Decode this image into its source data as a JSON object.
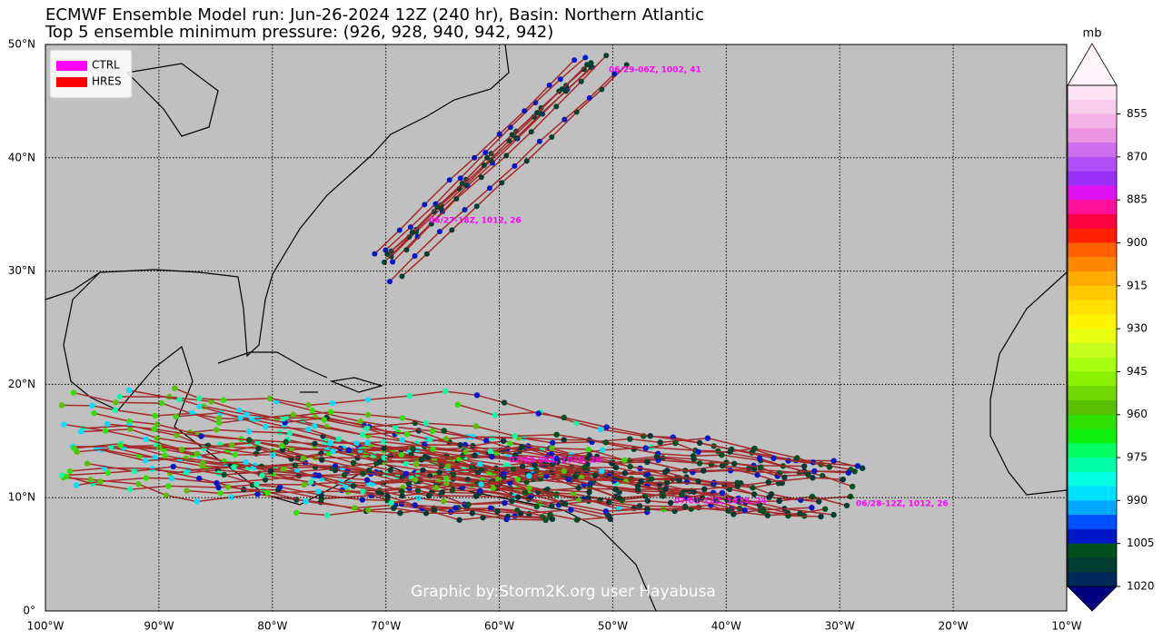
{
  "header": {
    "title": "ECMWF Ensemble Model run: Jun-26-2024 12Z (240 hr), Basin: Northern Atlantic",
    "subtitle": "Top 5 ensemble minimum pressure: (926, 928, 940, 942, 942)"
  },
  "map": {
    "lon_ticks": [
      {
        "value": -100,
        "label": "100°W"
      },
      {
        "value": -90,
        "label": "90°W"
      },
      {
        "value": -80,
        "label": "80°W"
      },
      {
        "value": -70,
        "label": "70°W"
      },
      {
        "value": -60,
        "label": "60°W"
      },
      {
        "value": -50,
        "label": "50°W"
      },
      {
        "value": -40,
        "label": "40°W"
      },
      {
        "value": -30,
        "label": "30°W"
      },
      {
        "value": -20,
        "label": "20°W"
      },
      {
        "value": -10,
        "label": "10°W"
      }
    ],
    "lat_ticks": [
      {
        "value": 0,
        "label": "0°"
      },
      {
        "value": 10,
        "label": "10°N"
      },
      {
        "value": 20,
        "label": "20°N"
      },
      {
        "value": 30,
        "label": "30°N"
      },
      {
        "value": 40,
        "label": "40°N"
      },
      {
        "value": 50,
        "label": "50°N"
      }
    ],
    "lonlim": [
      -100,
      -10
    ],
    "latlim": [
      0,
      50
    ],
    "grid": true,
    "legend": [
      {
        "label": "CTRL",
        "color": "#ff00ff"
      },
      {
        "label": "HRES",
        "color": "#ff0000"
      }
    ],
    "annotations": [
      "06/29-06Z, 1002, 41",
      "06/27-18Z, 1012, 26",
      "07/02-06Z, 1010, 26",
      "07/01-12Z, 1013, 24",
      "06/28-12Z, 1012, 26"
    ],
    "credit": "Graphic by:Storm2K.org user Hayabusa"
  },
  "colorbar": {
    "unit": "mb",
    "lim": [
      845,
      1020
    ],
    "ticks": [
      855,
      870,
      885,
      900,
      915,
      930,
      945,
      960,
      975,
      990,
      1005,
      1020
    ],
    "under_color": "#fff5fb",
    "over_color": "#00007f",
    "colors": [
      "#fce4f2",
      "#f8cdec",
      "#f3b2e8",
      "#eb94e2",
      "#cf6ff0",
      "#b24ff8",
      "#9a30f8",
      "#e010f0",
      "#ff1098",
      "#ff0040",
      "#ff2000",
      "#ff6000",
      "#ff8800",
      "#ffaa00",
      "#ffc800",
      "#ffe000",
      "#fff400",
      "#e8ff10",
      "#c8ff20",
      "#a8ff10",
      "#88f000",
      "#70d800",
      "#58c000",
      "#30e000",
      "#10f010",
      "#00ff60",
      "#00ffa8",
      "#00ffe0",
      "#00e0ff",
      "#00a8ff",
      "#0050ff",
      "#0018c8",
      "#00501e",
      "#003c30",
      "#002858"
    ]
  }
}
